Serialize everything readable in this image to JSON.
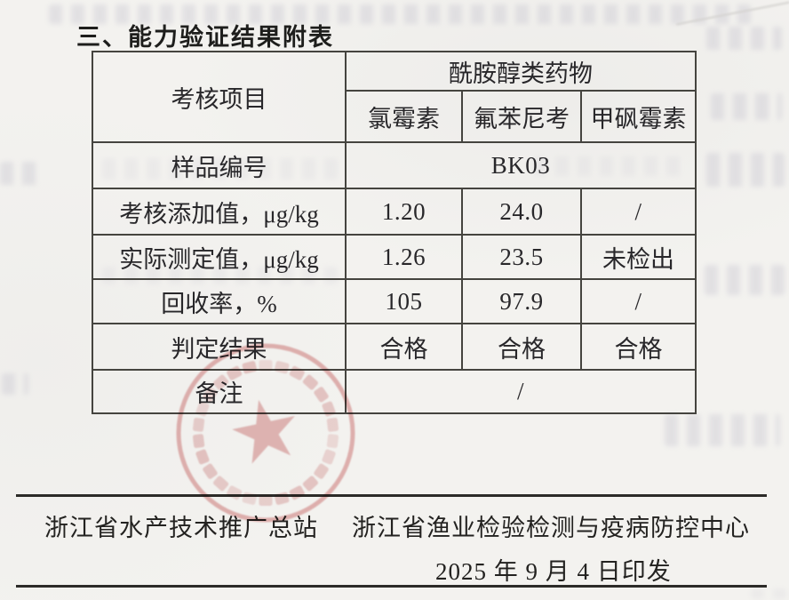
{
  "page": {
    "title": "三、能力验证结果附表"
  },
  "table": {
    "corner_header": "考核项目",
    "group_header": "酰胺醇类药物",
    "columns": [
      "氯霉素",
      "氟苯尼考",
      "甲砜霉素"
    ],
    "rows": [
      {
        "label": "样品编号",
        "span_value": "BK03"
      },
      {
        "label": "考核添加值，μg/kg",
        "values": [
          "1.20",
          "24.0",
          "/"
        ]
      },
      {
        "label": "实际测定值，μg/kg",
        "values": [
          "1.26",
          "23.5",
          "未检出"
        ]
      },
      {
        "label": "回收率，%",
        "values": [
          "105",
          "97.9",
          "/"
        ]
      },
      {
        "label": "判定结果",
        "values": [
          "合格",
          "合格",
          "合格"
        ]
      },
      {
        "label": "备注",
        "span_value": "/"
      }
    ]
  },
  "footer": {
    "org_left": "浙江省水产技术推广总站",
    "org_right": "浙江省渔业检验检测与疫病防控中心",
    "date_line": "2025 年 9 月 4 日印发"
  },
  "stamp": {
    "description": "round-red-official-seal-with-star"
  },
  "colors": {
    "paper": "#f3f2ef",
    "ink": "#262624",
    "table_border": "#45443f",
    "stamp_red": "#cc6060"
  }
}
